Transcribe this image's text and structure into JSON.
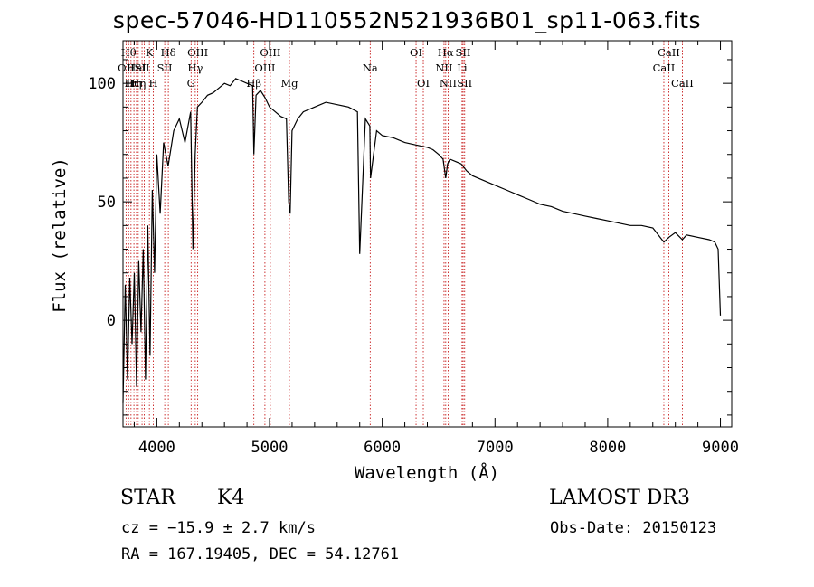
{
  "header": {
    "title": "spec-57046-HD110552N521936B01_sp11-063.fits"
  },
  "info": {
    "object_class": "STAR",
    "subclass": "K4",
    "survey": "LAMOST DR3",
    "cz_text": "cz = −15.9 ± 2.7 km/s",
    "obs_date_text": "Obs-Date: 20150123",
    "radec_text": "RA = 167.19405, DEC =  54.12761"
  },
  "colors": {
    "spectrum": "#000000",
    "line_markers": "#c00000",
    "axes": "#000000"
  },
  "chart_data": {
    "type": "line",
    "title": "spec-57046-HD110552N521936B01_sp11-063.fits",
    "xlabel": "Wavelength (Å)",
    "ylabel": "Flux (relative)",
    "xlim": [
      3700,
      9100
    ],
    "ylim": [
      -45,
      118
    ],
    "x_ticks": [
      4000,
      5000,
      6000,
      7000,
      8000,
      9000
    ],
    "y_ticks": [
      0,
      50,
      100
    ],
    "grid": false,
    "legend": "none",
    "series": [
      {
        "name": "flux",
        "x": [
          3700,
          3720,
          3740,
          3760,
          3780,
          3800,
          3820,
          3840,
          3860,
          3880,
          3900,
          3920,
          3940,
          3960,
          3980,
          4000,
          4030,
          4060,
          4100,
          4150,
          4200,
          4250,
          4300,
          4320,
          4340,
          4360,
          4400,
          4450,
          4500,
          4550,
          4600,
          4650,
          4700,
          4750,
          4800,
          4850,
          4861,
          4880,
          4920,
          4960,
          5000,
          5050,
          5100,
          5150,
          5170,
          5183,
          5200,
          5250,
          5300,
          5400,
          5500,
          5600,
          5700,
          5780,
          5800,
          5850,
          5890,
          5896,
          5950,
          6000,
          6100,
          6200,
          6300,
          6400,
          6450,
          6500,
          6540,
          6563,
          6580,
          6600,
          6650,
          6700,
          6750,
          6800,
          6900,
          7000,
          7100,
          7200,
          7300,
          7400,
          7500,
          7600,
          7700,
          7800,
          7900,
          8000,
          8100,
          8200,
          8300,
          8400,
          8498,
          8542,
          8600,
          8662,
          8700,
          8800,
          8900,
          8950,
          8980,
          9000
        ],
        "y": [
          -35,
          15,
          -25,
          18,
          -10,
          20,
          -28,
          25,
          -5,
          30,
          -25,
          40,
          -15,
          55,
          20,
          70,
          45,
          75,
          65,
          80,
          85,
          75,
          88,
          30,
          70,
          90,
          92,
          95,
          96,
          98,
          100,
          99,
          102,
          101,
          100,
          99,
          70,
          95,
          97,
          94,
          90,
          88,
          86,
          85,
          50,
          45,
          80,
          85,
          88,
          90,
          92,
          91,
          90,
          88,
          28,
          85,
          82,
          60,
          80,
          78,
          77,
          75,
          74,
          73,
          72,
          70,
          68,
          60,
          66,
          68,
          67,
          66,
          63,
          61,
          59,
          57,
          55,
          53,
          51,
          49,
          48,
          46,
          45,
          44,
          43,
          42,
          41,
          40,
          40,
          39,
          33,
          35,
          37,
          34,
          36,
          35,
          34,
          33,
          30,
          2
        ]
      }
    ],
    "line_markers": [
      {
        "wavelength": 3727,
        "label": "OII",
        "row": 2
      },
      {
        "wavelength": 3750,
        "label": "Hθ",
        "row": 1
      },
      {
        "wavelength": 3771,
        "label": "Hι",
        "row": 3
      },
      {
        "wavelength": 3797,
        "label": "Hη",
        "row": 3
      },
      {
        "wavelength": 3820,
        "label": "HeI",
        "row": 2
      },
      {
        "wavelength": 3835,
        "label": "Hη",
        "row": 3
      },
      {
        "wavelength": 3869,
        "label": "SII",
        "row": 2
      },
      {
        "wavelength": 3889,
        "label": "",
        "row": 0
      },
      {
        "wavelength": 3934,
        "label": "K",
        "row": 1
      },
      {
        "wavelength": 3969,
        "label": "H",
        "row": 3
      },
      {
        "wavelength": 4070,
        "label": "SII",
        "row": 2
      },
      {
        "wavelength": 4102,
        "label": "Hδ",
        "row": 1
      },
      {
        "wavelength": 4304,
        "label": "G",
        "row": 3
      },
      {
        "wavelength": 4341,
        "label": "Hγ",
        "row": 2
      },
      {
        "wavelength": 4363,
        "label": "OIII",
        "row": 1
      },
      {
        "wavelength": 4861,
        "label": "Hβ",
        "row": 3
      },
      {
        "wavelength": 4959,
        "label": "OIII",
        "row": 2
      },
      {
        "wavelength": 5007,
        "label": "OIII",
        "row": 1
      },
      {
        "wavelength": 5176,
        "label": "Mg",
        "row": 3
      },
      {
        "wavelength": 5893,
        "label": "Na",
        "row": 2
      },
      {
        "wavelength": 6300,
        "label": "OI",
        "row": 1
      },
      {
        "wavelength": 6364,
        "label": "OI",
        "row": 3
      },
      {
        "wavelength": 6548,
        "label": "NII",
        "row": 2
      },
      {
        "wavelength": 6563,
        "label": "Hα",
        "row": 1
      },
      {
        "wavelength": 6584,
        "label": "NII",
        "row": 3
      },
      {
        "wavelength": 6708,
        "label": "Li",
        "row": 2
      },
      {
        "wavelength": 6717,
        "label": "SII",
        "row": 1
      },
      {
        "wavelength": 6731,
        "label": "SII",
        "row": 3
      },
      {
        "wavelength": 8498,
        "label": "CaII",
        "row": 2
      },
      {
        "wavelength": 8542,
        "label": "CaII",
        "row": 1
      },
      {
        "wavelength": 8662,
        "label": "CaII",
        "row": 3
      }
    ]
  }
}
